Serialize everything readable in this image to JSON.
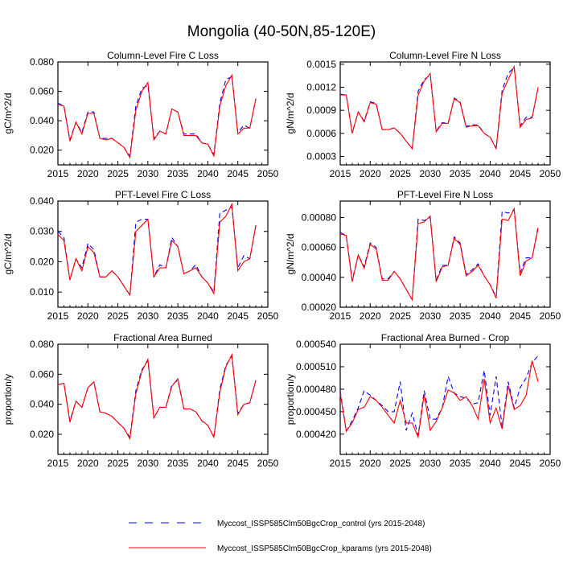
{
  "title": "Mongolia (40-50N,85-120E)",
  "legend": {
    "control": {
      "label": "Myccost_ISSP585Clm50BgcCrop_control (yrs 2015-2048)",
      "color": "#0000ff",
      "style": "dashed"
    },
    "kparams": {
      "label": "Myccost_ISSP585Clm50BgcCrop_kparams (yrs 2015-2048)",
      "color": "#ff0000",
      "style": "solid"
    }
  },
  "chart_data": [
    {
      "type": "line",
      "title": "Column-Level Fire C Loss",
      "ylabel": "gC/m^2/d",
      "xlim": [
        2015,
        2050
      ],
      "ylim": [
        0.01,
        0.08
      ],
      "xticks": [
        "2015",
        "2020",
        "2025",
        "2030",
        "2035",
        "2040",
        "2045",
        "2050"
      ],
      "yticks": [
        "0.020",
        "0.040",
        "0.060",
        "0.080"
      ],
      "series": [
        {
          "name": "control",
          "values": [
            0.052,
            0.05,
            0.027,
            0.039,
            0.032,
            0.046,
            0.046,
            0.028,
            0.028,
            0.028,
            0.025,
            0.022,
            0.016,
            0.05,
            0.062,
            0.064,
            0.028,
            0.033,
            0.031,
            0.048,
            0.046,
            0.031,
            0.031,
            0.031,
            0.025,
            0.024,
            0.017,
            0.052,
            0.068,
            0.07,
            0.032,
            0.037,
            0.035,
            0.055
          ]
        },
        {
          "name": "kparams",
          "values": [
            0.051,
            0.05,
            0.026,
            0.039,
            0.031,
            0.045,
            0.045,
            0.028,
            0.027,
            0.028,
            0.025,
            0.022,
            0.015,
            0.047,
            0.06,
            0.066,
            0.027,
            0.033,
            0.031,
            0.048,
            0.046,
            0.03,
            0.03,
            0.03,
            0.025,
            0.024,
            0.016,
            0.05,
            0.064,
            0.071,
            0.031,
            0.035,
            0.035,
            0.055
          ]
        }
      ]
    },
    {
      "type": "line",
      "title": "Column-Level Fire N Loss",
      "ylabel": "gN/m^2/d",
      "xlim": [
        2015,
        2050
      ],
      "ylim": [
        0.00019,
        0.00153
      ],
      "xticks": [
        "2015",
        "2020",
        "2025",
        "2030",
        "2035",
        "2040",
        "2045",
        "2050"
      ],
      "yticks": [
        "0.0003",
        "0.0006",
        "0.0009",
        "0.0012",
        "0.0015"
      ],
      "series": [
        {
          "name": "control",
          "values": [
            0.00111,
            0.0011,
            0.00061,
            0.00088,
            0.00076,
            0.00101,
            0.00099,
            0.00065,
            0.00065,
            0.00067,
            0.0006,
            0.0005,
            0.0004,
            0.00115,
            0.0013,
            0.00136,
            0.00063,
            0.00074,
            0.00073,
            0.00106,
            0.00101,
            0.00069,
            0.00071,
            0.00071,
            0.0006,
            0.00055,
            0.00041,
            0.00116,
            0.00138,
            0.00146,
            0.0007,
            0.00081,
            0.00081,
            0.0012
          ]
        },
        {
          "name": "kparams",
          "values": [
            0.0011,
            0.0011,
            0.0006,
            0.00088,
            0.00075,
            0.001,
            0.00098,
            0.00065,
            0.00065,
            0.00067,
            0.0006,
            0.0005,
            0.0004,
            0.0011,
            0.00128,
            0.00138,
            0.00062,
            0.00073,
            0.00073,
            0.00105,
            0.001,
            0.00068,
            0.0007,
            0.0007,
            0.0006,
            0.00055,
            0.0004,
            0.00112,
            0.0013,
            0.00147,
            0.00068,
            0.00078,
            0.0008,
            0.0012
          ]
        }
      ]
    },
    {
      "type": "line",
      "title": "PFT-Level Fire C Loss",
      "ylabel": "gC/m^2/d",
      "xlim": [
        2015,
        2050
      ],
      "ylim": [
        0.005,
        0.04
      ],
      "xticks": [
        "2015",
        "2020",
        "2025",
        "2030",
        "2035",
        "2040",
        "2045",
        "2050"
      ],
      "yticks": [
        "0.010",
        "0.020",
        "0.030",
        "0.040"
      ],
      "series": [
        {
          "name": "control",
          "values": [
            0.03,
            0.028,
            0.014,
            0.021,
            0.018,
            0.026,
            0.024,
            0.015,
            0.015,
            0.017,
            0.015,
            0.012,
            0.009,
            0.033,
            0.034,
            0.034,
            0.015,
            0.019,
            0.018,
            0.028,
            0.025,
            0.016,
            0.017,
            0.019,
            0.015,
            0.013,
            0.01,
            0.036,
            0.037,
            0.038,
            0.018,
            0.022,
            0.021,
            0.032
          ]
        },
        {
          "name": "kparams",
          "values": [
            0.029,
            0.027,
            0.014,
            0.021,
            0.017,
            0.025,
            0.023,
            0.015,
            0.015,
            0.017,
            0.015,
            0.012,
            0.009,
            0.03,
            0.032,
            0.034,
            0.015,
            0.018,
            0.018,
            0.027,
            0.025,
            0.016,
            0.017,
            0.018,
            0.015,
            0.013,
            0.0095,
            0.033,
            0.035,
            0.039,
            0.017,
            0.02,
            0.021,
            0.032
          ]
        }
      ]
    },
    {
      "type": "line",
      "title": "PFT-Level Fire N Loss",
      "ylabel": "gN/m^2/d",
      "xlim": [
        2015,
        2050
      ],
      "ylim": [
        0.0002,
        0.00091
      ],
      "xticks": [
        "2015",
        "2020",
        "2025",
        "2030",
        "2035",
        "2040",
        "2045",
        "2050"
      ],
      "yticks": [
        "0.00020",
        "0.00040",
        "0.00060",
        "0.00080"
      ],
      "series": [
        {
          "name": "control",
          "values": [
            0.0007,
            0.00068,
            0.00038,
            0.00055,
            0.00047,
            0.00063,
            0.0006,
            0.00039,
            0.00039,
            0.00044,
            0.00039,
            0.00032,
            0.00025,
            0.00079,
            0.00078,
            0.0008,
            0.00038,
            0.00048,
            0.00048,
            0.00067,
            0.00063,
            0.00042,
            0.00045,
            0.00049,
            0.00041,
            0.00035,
            0.00027,
            0.00084,
            0.00083,
            0.00085,
            0.00043,
            0.00053,
            0.00053,
            0.00074
          ]
        },
        {
          "name": "kparams",
          "values": [
            0.00069,
            0.00068,
            0.00037,
            0.00055,
            0.00046,
            0.00062,
            0.00059,
            0.00038,
            0.00038,
            0.00044,
            0.00039,
            0.00032,
            0.00025,
            0.00076,
            0.00077,
            0.00081,
            0.00037,
            0.00047,
            0.00048,
            0.00066,
            0.00062,
            0.00041,
            0.00044,
            0.00048,
            0.00041,
            0.00035,
            0.00026,
            0.00079,
            0.00078,
            0.00086,
            0.00041,
            0.00051,
            0.00053,
            0.00073
          ]
        }
      ]
    },
    {
      "type": "line",
      "title": "Fractional Area Burned",
      "ylabel": "proportion/y",
      "xlim": [
        2015,
        2050
      ],
      "ylim": [
        0.0066,
        0.08
      ],
      "xticks": [
        "2015",
        "2020",
        "2025",
        "2030",
        "2035",
        "2040",
        "2045",
        "2050"
      ],
      "yticks": [
        "0.020",
        "0.040",
        "0.060",
        "0.080"
      ],
      "series": [
        {
          "name": "control",
          "values": [
            0.053,
            0.054,
            0.029,
            0.042,
            0.038,
            0.051,
            0.055,
            0.035,
            0.034,
            0.032,
            0.028,
            0.024,
            0.018,
            0.049,
            0.063,
            0.069,
            0.031,
            0.038,
            0.038,
            0.053,
            0.056,
            0.037,
            0.037,
            0.035,
            0.029,
            0.026,
            0.018,
            0.05,
            0.066,
            0.072,
            0.034,
            0.04,
            0.041,
            0.056
          ]
        },
        {
          "name": "kparams",
          "values": [
            0.053,
            0.054,
            0.028,
            0.042,
            0.038,
            0.051,
            0.055,
            0.035,
            0.034,
            0.032,
            0.028,
            0.024,
            0.017,
            0.047,
            0.062,
            0.07,
            0.031,
            0.038,
            0.038,
            0.052,
            0.057,
            0.037,
            0.037,
            0.035,
            0.029,
            0.026,
            0.018,
            0.048,
            0.065,
            0.073,
            0.033,
            0.04,
            0.041,
            0.056
          ]
        }
      ]
    },
    {
      "type": "line",
      "title": "Fractional Area Burned - Crop",
      "ylabel": "proportion/y",
      "xlim": [
        2015,
        2050
      ],
      "ylim": [
        0.000393,
        0.00054
      ],
      "xticks": [
        "2015",
        "2020",
        "2025",
        "2030",
        "2035",
        "2040",
        "2045",
        "2050"
      ],
      "yticks": [
        "0.000420",
        "0.000450",
        "0.000480",
        "0.000510",
        "0.000540"
      ],
      "series": [
        {
          "name": "control",
          "values": [
            0.000478,
            0.000424,
            0.000438,
            0.000455,
            0.000478,
            0.000472,
            0.000465,
            0.000458,
            0.00045,
            0.00045,
            0.00049,
            0.000425,
            0.000448,
            0.000418,
            0.000478,
            0.00044,
            0.00044,
            0.000455,
            0.000497,
            0.000475,
            0.00047,
            0.000468,
            0.00046,
            0.000462,
            0.000505,
            0.000445,
            0.000497,
            0.00043,
            0.00049,
            0.000455,
            0.000482,
            0.000495,
            0.000515,
            0.000525
          ]
        },
        {
          "name": "kparams",
          "values": [
            0.000475,
            0.000424,
            0.000435,
            0.000453,
            0.000456,
            0.00047,
            0.000465,
            0.000456,
            0.000445,
            0.000435,
            0.000465,
            0.000435,
            0.000435,
            0.000416,
            0.000473,
            0.000425,
            0.000437,
            0.000455,
            0.000479,
            0.000475,
            0.000465,
            0.00047,
            0.000458,
            0.00044,
            0.000494,
            0.000435,
            0.000455,
            0.000427,
            0.000485,
            0.000453,
            0.000458,
            0.000472,
            0.000518,
            0.00049
          ]
        }
      ]
    }
  ]
}
